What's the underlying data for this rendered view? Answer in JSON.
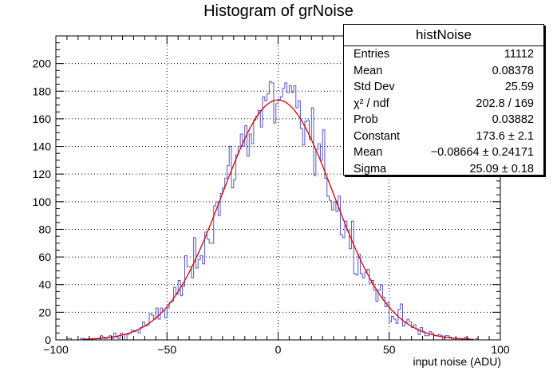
{
  "title": "Histogram of grNoise",
  "chart_data": {
    "type": "histogram",
    "title": "Histogram of grNoise",
    "xlabel": "input noise (ADU)",
    "ylabel": "",
    "xlim": [
      -100,
      100
    ],
    "ylim": [
      0,
      220
    ],
    "grid": true,
    "x_ticks": [
      -100,
      -50,
      0,
      50,
      100
    ],
    "y_ticks": [
      0,
      20,
      40,
      60,
      80,
      100,
      120,
      140,
      160,
      180,
      200
    ],
    "series": [
      {
        "kind": "histogram",
        "color": "#5555cc",
        "bin_width": 1
      },
      {
        "kind": "gaussian-fit",
        "color": "#e00000"
      }
    ],
    "fit": {
      "constant": 173.6,
      "mean": -0.08664,
      "sigma": 25.09
    }
  },
  "stats": {
    "name": "histNoise",
    "rows": [
      {
        "k": "Entries",
        "v": "11112"
      },
      {
        "k": "Mean",
        "v": "0.08378"
      },
      {
        "k": "Std Dev",
        "v": "25.59"
      },
      {
        "k": "χ² / ndf",
        "v": "202.8 / 169"
      },
      {
        "k": "Prob",
        "v": "0.03882"
      },
      {
        "k": "Constant",
        "v": "173.6 ± 2.1"
      },
      {
        "k": "Mean",
        "v": "−0.08664 ± 0.24171"
      },
      {
        "k": "Sigma",
        "v": "25.09 ± 0.18"
      }
    ]
  }
}
